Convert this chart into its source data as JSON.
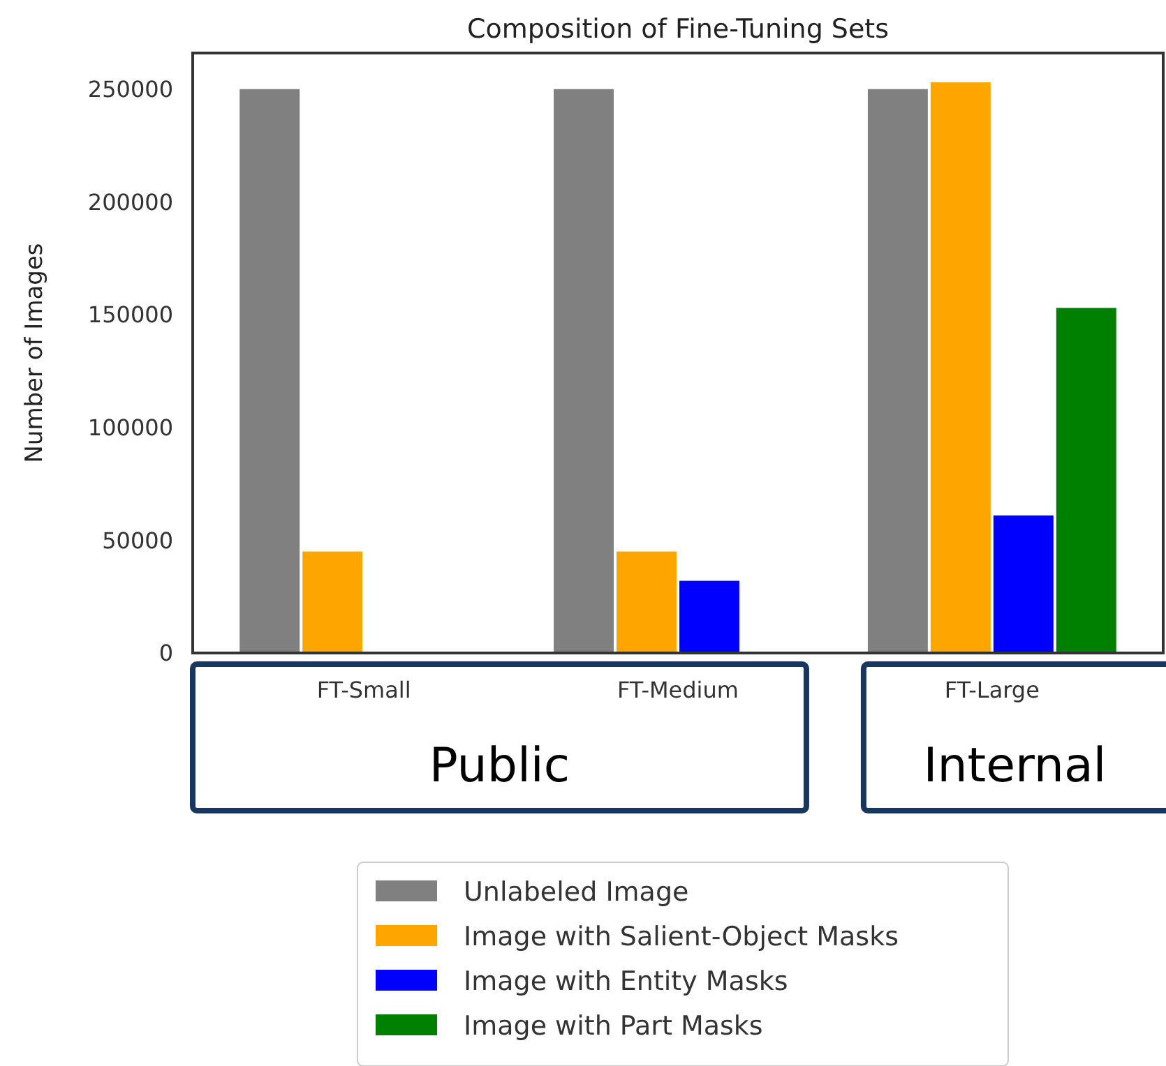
{
  "chart_data": {
    "type": "bar",
    "title": "Composition of Fine-Tuning Sets",
    "ylabel": "Number of Images",
    "categories": [
      "FT-Small",
      "FT-Medium",
      "FT-Large"
    ],
    "series": [
      {
        "name": "Unlabeled Image",
        "color": "#808080",
        "values": [
          250000,
          250000,
          250000
        ]
      },
      {
        "name": "Image with Salient-Object Masks",
        "color": "#ffa500",
        "values": [
          45000,
          45000,
          253000
        ]
      },
      {
        "name": "Image with Entity Masks",
        "color": "#0000ff",
        "values": [
          null,
          32000,
          61000
        ]
      },
      {
        "name": "Image with Part Masks",
        "color": "#008000",
        "values": [
          null,
          null,
          153000
        ]
      }
    ],
    "ylim": [
      0,
      266000
    ],
    "yticks": [
      0,
      50000,
      100000,
      150000,
      200000,
      250000
    ],
    "annotations": [
      "Public",
      "Internal"
    ],
    "legend": "bottom"
  }
}
